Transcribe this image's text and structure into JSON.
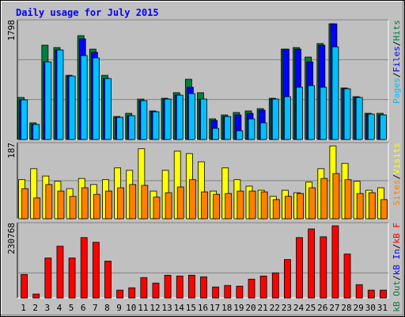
{
  "chart_data": {
    "type": "bar",
    "title": "Daily usage for July 2015",
    "categories": [
      "1",
      "2",
      "3",
      "4",
      "5",
      "6",
      "7",
      "8",
      "9",
      "10",
      "11",
      "12",
      "13",
      "14",
      "15",
      "16",
      "17",
      "18",
      "19",
      "20",
      "21",
      "22",
      "23",
      "24",
      "25",
      "26",
      "27",
      "28",
      "29",
      "30",
      "31"
    ],
    "category_colors": [
      "#000000",
      "#000000",
      "#000000",
      "#00803c",
      "#00803c",
      "#000000",
      "#000000",
      "#000000",
      "#000000",
      "#000000",
      "#00803c",
      "#00803c",
      "#000000",
      "#000000",
      "#000000",
      "#000000",
      "#000000",
      "#00803c",
      "#00803c",
      "#000000",
      "#000000",
      "#000000",
      "#000000",
      "#000000",
      "#00803c",
      "#00803c",
      "#000000",
      "#000000",
      "#000000",
      "#000000",
      "#000000"
    ],
    "legend_separator": "/",
    "panels": [
      {
        "ylim": [
          0,
          1798
        ],
        "yticks": [
          1798
        ],
        "series": [
          {
            "name": "Hits",
            "color": "#008040",
            "values": [
              631,
              250,
              1417,
              1381,
              964,
              1560,
              1357,
              964,
              345,
              393,
              607,
              429,
              619,
              703,
              905,
              703,
              310,
              369,
              405,
              429,
              464,
              619,
              1357,
              1381,
              1238,
              1441,
              1738,
              774,
              643,
              393,
              393
            ]
          },
          {
            "name": "Files",
            "color": "#0000ff",
            "values": [
              595,
              226,
              1166,
              1345,
              952,
              1511,
              1309,
              916,
              333,
              357,
              583,
              417,
              607,
              666,
              785,
              607,
              286,
              345,
              369,
              393,
              440,
              607,
              1357,
              1357,
              1166,
              1416,
              1737,
              762,
              631,
              381,
              369
            ]
          },
          {
            "name": "Pages",
            "color": "#00c0ff",
            "values": [
              595,
              226,
              1166,
              1345,
              952,
              1261,
              1226,
              916,
              333,
              357,
              583,
              417,
              607,
              666,
              690,
              607,
              167,
              345,
              131,
              309,
              250,
              607,
              643,
              785,
              809,
              785,
              1392,
              762,
              631,
              381,
              369
            ]
          }
        ]
      },
      {
        "ylim": [
          0,
          187
        ],
        "yticks": [
          187
        ],
        "series": [
          {
            "name": "Visits",
            "color": "#ffff00",
            "values": [
              96,
              123,
              105,
              92,
              74,
              99,
              84,
              96,
              125,
              119,
              172,
              68,
              119,
              166,
              160,
              140,
              68,
              125,
              96,
              80,
              70,
              55,
              70,
              64,
              90,
              123,
              179,
              136,
              92,
              70,
              76
            ]
          },
          {
            "name": "Sites",
            "color": "#ff8000",
            "values": [
              74,
              51,
              84,
              68,
              55,
              76,
              60,
              68,
              76,
              84,
              82,
              53,
              64,
              78,
              96,
              66,
              60,
              62,
              68,
              68,
              66,
              47,
              55,
              62,
              76,
              99,
              111,
              96,
              62,
              64,
              47
            ]
          }
        ]
      },
      {
        "ylim": [
          0,
          230768
        ],
        "yticks": [
          230768
        ],
        "series": [
          {
            "name": "kB F",
            "color": "#ff0000",
            "values": [
              72120,
              12020,
              122604,
              158664,
              122604,
              185108,
              170684,
              112988,
              24040,
              31252,
              62504,
              45676,
              69716,
              67312,
              69716,
              64908,
              33656,
              38464,
              36060,
              57696,
              67312,
              76928,
              117796,
              185108,
              211552,
              187512,
              221168,
              134624,
              40868,
              24040,
              24040
            ]
          },
          {
            "name": "kB In",
            "color": "#0000ff"
          },
          {
            "name": "kB Out",
            "color": "#008040"
          }
        ]
      }
    ]
  }
}
